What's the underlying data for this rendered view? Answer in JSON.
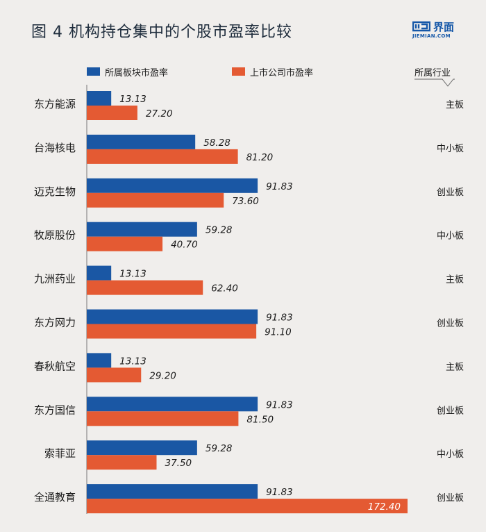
{
  "title": "图 4   机构持仓集中的个股市盈率比较",
  "logo": {
    "brand": "界面",
    "url": "JIEMIAN.COM"
  },
  "industry_header": "所属行业",
  "colors": {
    "series1": "#1a57a4",
    "series2": "#e45a33",
    "background": "#f0eeec"
  },
  "chart_data": {
    "type": "bar",
    "orientation": "horizontal",
    "title": "图 4   机构持仓集中的个股市盈率比较",
    "categories": [
      "东方能源",
      "台海核电",
      "迈克生物",
      "牧原股份",
      "九洲药业",
      "东方网力",
      "春秋航空",
      "东方国信",
      "索菲亚",
      "全通教育"
    ],
    "series": [
      {
        "name": "所属板块市盈率",
        "values": [
          13.13,
          58.28,
          91.83,
          59.28,
          13.13,
          91.83,
          13.13,
          91.83,
          59.28,
          91.83
        ]
      },
      {
        "name": "上市公司市盈率",
        "values": [
          27.2,
          81.2,
          73.6,
          40.7,
          62.4,
          91.1,
          29.2,
          81.5,
          37.5,
          172.4
        ]
      }
    ],
    "industries": [
      "主板",
      "中小板",
      "创业板",
      "中小板",
      "主板",
      "创业板",
      "主板",
      "创业板",
      "中小板",
      "创业板"
    ],
    "xlim": [
      0,
      172.4
    ],
    "legend_position": "top"
  }
}
